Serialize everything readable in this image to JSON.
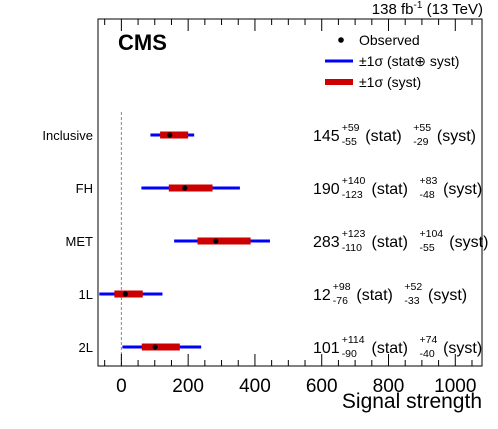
{
  "header": {
    "lumi_prefix": "138 fb",
    "lumi_exp": "-1",
    "lumi_suffix": " (13 TeV)"
  },
  "experiment_label": "CMS",
  "legend": {
    "observed": "Observed",
    "total_prefix": "±1σ (stat",
    "total_symbol": "⊕",
    "total_suffix": " syst)",
    "syst": "±1σ (syst)"
  },
  "colors": {
    "stat_total": "#0000ff",
    "syst": "#cc0000",
    "marker": "#000000",
    "reference_line": "#888888"
  },
  "labels": {
    "stat": "(stat)",
    "syst": "(syst)"
  },
  "chart_data": {
    "type": "scatter",
    "xlabel": "Signal strength",
    "xlim": [
      -70,
      1080
    ],
    "xticks": [
      "0",
      "200",
      "400",
      "600",
      "800",
      "1000"
    ],
    "xtick_values": [
      0,
      200,
      400,
      600,
      800,
      1000
    ],
    "reference_line_x": 0,
    "categories": [
      "Inclusive",
      "FH",
      "MET",
      "1L",
      "2L"
    ],
    "results": [
      {
        "name": "Inclusive",
        "value": 145,
        "stat_up": 59,
        "stat_down": 55,
        "syst_up": 55,
        "syst_down": 29,
        "total_low": 87,
        "total_high": 218
      },
      {
        "name": "FH",
        "value": 190,
        "stat_up": 140,
        "stat_down": 123,
        "syst_up": 83,
        "syst_down": 48,
        "total_low": 60,
        "total_high": 355
      },
      {
        "name": "MET",
        "value": 283,
        "stat_up": 123,
        "stat_down": 110,
        "syst_up": 104,
        "syst_down": 55,
        "total_low": 158,
        "total_high": 445
      },
      {
        "name": "1L",
        "value": 12,
        "stat_up": 98,
        "stat_down": 76,
        "syst_up": 52,
        "syst_down": 33,
        "total_low": -66,
        "total_high": 123
      },
      {
        "name": "2L",
        "value": 101,
        "stat_up": 114,
        "stat_down": 90,
        "syst_up": 74,
        "syst_down": 40,
        "total_low": 3,
        "total_high": 239
      }
    ]
  }
}
